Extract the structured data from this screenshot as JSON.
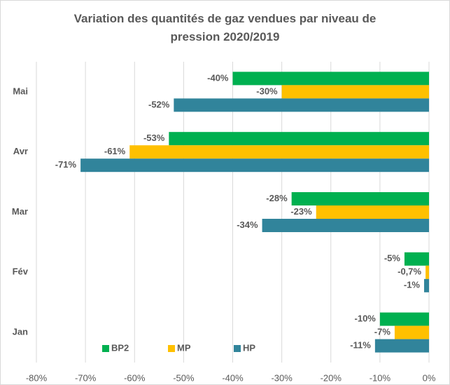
{
  "chart_data": {
    "type": "hbar",
    "title": "Variation des quantités de gaz vendues par niveau de pression 2020/2019",
    "categories": [
      "Jan",
      "Fév",
      "Mar",
      "Avr",
      "Mai"
    ],
    "series": [
      {
        "name": "BP2",
        "color": "#00b050",
        "values": [
          -10,
          -5,
          -28,
          -53,
          -40
        ],
        "value_labels": [
          "-10%",
          "-5%",
          "-28%",
          "-53%",
          "-40%"
        ]
      },
      {
        "name": "MP",
        "color": "#ffc000",
        "values": [
          -7,
          -0.7,
          -23,
          -61,
          -30
        ],
        "value_labels": [
          "-7%",
          "-0,7%",
          "-23%",
          "-61%",
          "-30%"
        ]
      },
      {
        "name": "HP",
        "color": "#31849b",
        "values": [
          -11,
          -1,
          -34,
          -71,
          -52
        ],
        "value_labels": [
          "-11%",
          "-1%",
          "-34%",
          "-71%",
          "-52%"
        ]
      }
    ],
    "xlim": [
      -80,
      0
    ],
    "xticks": [
      {
        "value": -80,
        "label": "-80%"
      },
      {
        "value": -70,
        "label": "-70%"
      },
      {
        "value": -60,
        "label": "-60%"
      },
      {
        "value": -50,
        "label": "-50%"
      },
      {
        "value": -40,
        "label": "-40%"
      },
      {
        "value": -30,
        "label": "-30%"
      },
      {
        "value": -20,
        "label": "-20%"
      },
      {
        "value": -10,
        "label": "-10%"
      },
      {
        "value": 0,
        "label": "0%"
      }
    ],
    "grid": true,
    "legend": "bottom"
  }
}
